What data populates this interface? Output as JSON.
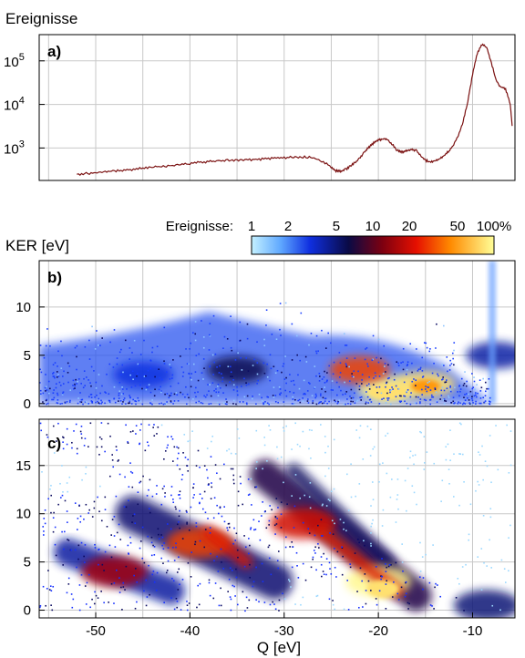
{
  "chart_data": [
    {
      "panel": "a)",
      "type": "line",
      "ylabel": "Ereignisse",
      "yscale": "log",
      "ylim": [
        180,
        400000
      ],
      "xlim": [
        -56,
        -5.5
      ],
      "grid": true,
      "x": [
        -52,
        -51,
        -50,
        -49,
        -48,
        -47,
        -46,
        -45,
        -44,
        -43,
        -42,
        -41,
        -40,
        -39,
        -38,
        -37,
        -36,
        -35,
        -34,
        -33,
        -32,
        -31,
        -30,
        -29,
        -28,
        -27,
        -26,
        -25,
        -24.5,
        -24,
        -23.5,
        -23,
        -22.5,
        -22,
        -21.5,
        -21,
        -20.5,
        -20,
        -19.5,
        -19,
        -18.5,
        -18,
        -17.5,
        -17,
        -16.5,
        -16,
        -15.5,
        -15,
        -14.5,
        -14,
        -13.5,
        -13,
        -12.5,
        -12,
        -11.5,
        -11,
        -10.5,
        -10,
        -9.5,
        -9,
        -8.5,
        -8,
        -7.5,
        -7,
        -6.5,
        -6,
        -5.8
      ],
      "y": [
        250,
        260,
        270,
        285,
        295,
        310,
        320,
        345,
        370,
        380,
        395,
        415,
        440,
        470,
        490,
        505,
        520,
        525,
        530,
        545,
        565,
        585,
        600,
        615,
        620,
        610,
        490,
        370,
        300,
        290,
        320,
        380,
        460,
        580,
        800,
        1050,
        1300,
        1500,
        1630,
        1550,
        1200,
        880,
        800,
        880,
        930,
        880,
        650,
        520,
        480,
        500,
        560,
        680,
        860,
        1200,
        2000,
        4000,
        12000,
        50000,
        150000,
        240000,
        200000,
        90000,
        35000,
        25000,
        23000,
        10000,
        3200
      ]
    },
    {
      "panel": "b)",
      "type": "heatmap",
      "ylabel": "KER [eV]",
      "ylim": [
        -0.3,
        14.8
      ],
      "xlim": [
        -56,
        -5.5
      ],
      "yticks": [
        0,
        5,
        10
      ],
      "grid": true,
      "colorbar": {
        "label": "Ereignisse:",
        "ticks": [
          "1",
          "2",
          "5",
          "10",
          "20",
          "50",
          "100%"
        ],
        "values": [
          1,
          2,
          5,
          10,
          20,
          50,
          100
        ],
        "scale": "log"
      },
      "features": [
        {
          "q": -19,
          "ker": 1.5,
          "intensity": 95
        },
        {
          "q": -15,
          "ker": 2,
          "intensity": 80
        },
        {
          "q": -22,
          "ker": 3.5,
          "intensity": 30
        },
        {
          "q": -35,
          "ker": 3.5,
          "intensity": 6
        },
        {
          "q": -45,
          "ker": 3,
          "intensity": 3
        },
        {
          "q": -7.5,
          "ker": 5,
          "intensity": 4
        }
      ]
    },
    {
      "panel": "c)",
      "type": "heatmap",
      "xlabel": "Q [eV]",
      "ylim": [
        -0.8,
        19.8
      ],
      "xlim": [
        -56,
        -5.5
      ],
      "xticks": [
        -50,
        -40,
        -30,
        -20,
        -10
      ],
      "yticks": [
        0,
        5,
        10,
        15
      ],
      "grid": true,
      "features": [
        {
          "q": -48,
          "ker": 4,
          "intensity": 15
        },
        {
          "q": -39,
          "ker": 7,
          "intensity": 30
        },
        {
          "q": -28,
          "ker": 9,
          "intensity": 20
        },
        {
          "q": -20,
          "ker": 3,
          "intensity": 95
        },
        {
          "q": -8.5,
          "ker": 0.5,
          "intensity": 5
        }
      ]
    }
  ]
}
